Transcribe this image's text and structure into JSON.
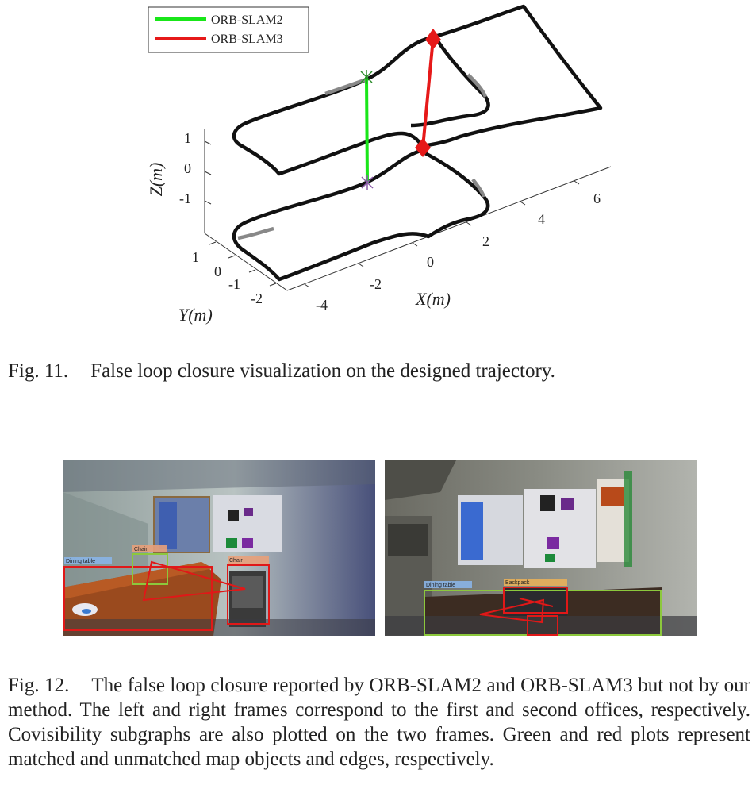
{
  "figure11": {
    "legend": {
      "items": [
        {
          "label": "ORB-SLAM2",
          "color": "#19e619"
        },
        {
          "label": "ORB-SLAM3",
          "color": "#e61919"
        }
      ]
    },
    "axes": {
      "z_label": "Z(m)",
      "z_ticks": [
        "1",
        "0",
        "-1"
      ],
      "y_label": "Y(m)",
      "y_ticks": [
        "1",
        "0",
        "-1",
        "-2"
      ],
      "x_label": "X(m)",
      "x_ticks": [
        "-4",
        "-2",
        "0",
        "2",
        "4",
        "6"
      ]
    },
    "caption_label": "Fig. 11.",
    "caption_text": "False loop closure visualization on the designed trajectory."
  },
  "figure12": {
    "left_frame": {
      "boxes": [
        {
          "label": "Dining table",
          "color": "#e01818"
        },
        {
          "label": "Chair",
          "color": "#8cc83c"
        },
        {
          "label": "Chair",
          "color": "#e01818"
        }
      ]
    },
    "right_frame": {
      "boxes": [
        {
          "label": "Dining table",
          "color": "#8cc83c"
        },
        {
          "label": "Backpack",
          "color": "#e01818"
        }
      ]
    },
    "caption_label": "Fig. 12.",
    "caption_text": "The false loop closure reported by ORB-SLAM2 and ORB-SLAM3 but not by our method. The left and right frames correspond to the first and second offices, respectively. Covisibility subgraphs are also plotted on the two frames. Green and red plots represent matched and unmatched map objects and edges, respectively."
  }
}
